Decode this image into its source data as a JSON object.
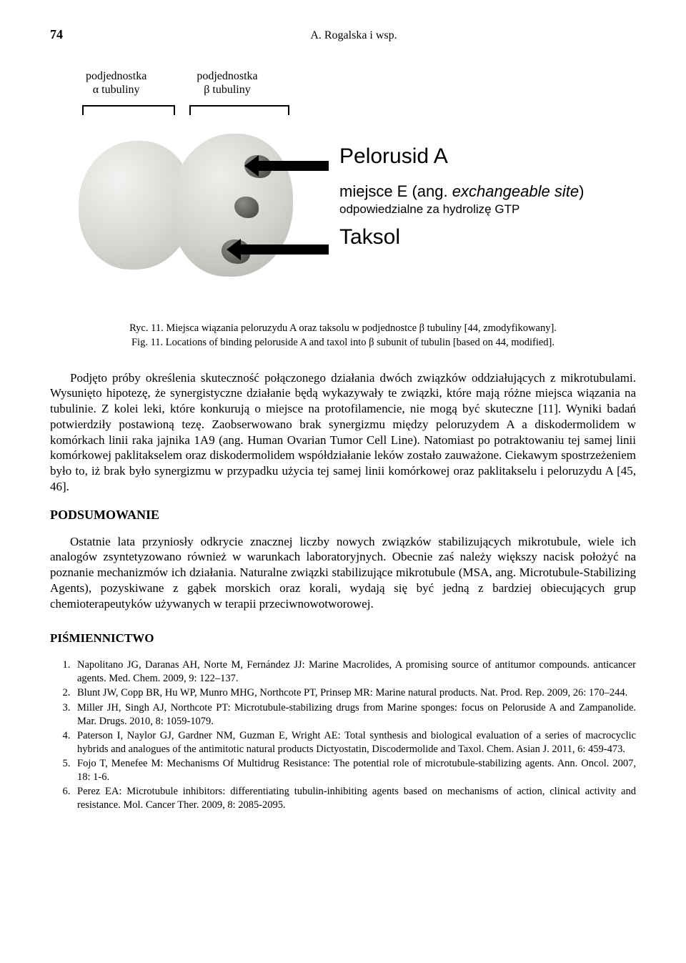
{
  "header": {
    "page_number": "74",
    "running_head": "A. Rogalska  i  wsp."
  },
  "figure": {
    "subunit_a_line1": "podjednostka",
    "subunit_a_line2": "α tubuliny",
    "subunit_b_line1": "podjednostka",
    "subunit_b_line2": "β tubuliny",
    "label_pelorusid": "Pelorusid A",
    "label_siteE_prefix": "miejsce E (ang. ",
    "label_siteE_italic": "exchangeable site",
    "label_siteE_suffix": ")",
    "label_siteE_line2": "odpowiedzialne za hydrolizę GTP",
    "label_taksol": "Taksol",
    "caption_line1": "Ryc. 11. Miejsca wiązania peloruzydu A oraz taksolu w podjednostce β tubuliny [44, zmodyfikowany].",
    "caption_line2": "Fig. 11. Locations of binding peloruside A and taxol into β subunit of tubulin [based on 44, modified]."
  },
  "paragraphs": {
    "p1": "Podjęto próby określenia skuteczność połączonego działania dwóch związków oddziałujących z mikrotubulami. Wysunięto hipotezę, że synergistyczne działanie będą wykazywały te związki, które mają różne miejsca wiązania na tubulinie. Z kolei leki, które konkurują o miejsce na protofilamencie, nie mogą być skuteczne [11]. Wyniki badań potwierdziły postawioną tezę. Zaobserwowano brak synergizmu między peloruzydem A a diskodermolidem w komórkach linii raka jajnika 1A9 (ang. Human Ovarian Tumor Cell Line). Natomiast po potraktowaniu tej samej linii komórkowej paklitakselem oraz diskodermolidem współdziałanie leków zostało zauważone. Ciekawym spostrzeżeniem było to, iż brak było synergizmu w przypadku użycia tej samej linii komórkowej oraz paklitakselu i peloruzydu A [45, 46].",
    "p2": "Ostatnie lata przyniosły odkrycie znacznej liczby nowych związków stabilizujących mikrotubule, wiele ich analogów zsyntetyzowano również w warunkach laboratoryjnych. Obecnie zaś należy większy nacisk położyć na poznanie mechanizmów ich działania. Naturalne związki stabilizujące mikrotubule (MSA, ang. Microtubule-Stabilizing Agents), pozyskiwane z gąbek morskich oraz korali, wydają się być jedną z bardziej obiecujących grup chemioterapeutyków używanych w terapii przeciwnowotworowej."
  },
  "headings": {
    "summary": "PODSUMOWANIE",
    "references": "PIŚMIENNICTWO"
  },
  "references": [
    "Napolitano JG, Daranas AH, Norte M, Fernández JJ: Marine Macrolides, A promising source of antitumor compounds. anticancer agents. Med. Chem. 2009, 9: 122–137.",
    "Blunt JW, Copp BR, Hu WP, Munro MHG, Northcote PT, Prinsep MR: Marine natural products. Nat. Prod. Rep. 2009, 26: 170–244.",
    "Miller JH, Singh AJ, Northcote PT: Microtubule-stabilizing drugs from Marine sponges: focus on Peloruside A and Zampanolide. Mar. Drugs. 2010, 8: 1059-1079.",
    "Paterson I, Naylor GJ, Gardner NM, Guzman E, Wright AE: Total synthesis and biological evaluation of a series of macrocyclic hybrids and analogues of the antimitotic natural products Dictyostatin, Discodermolide and Taxol. Chem. Asian J. 2011, 6: 459-473.",
    "Fojo T, Menefee M: Mechanisms Of Multidrug Resistance: The potential role of microtubule-stabilizing agents. Ann. Oncol. 2007, 18: 1-6.",
    "Perez EA: Microtubule inhibitors: differentiating tubulin-inhibiting agents based on mechanisms of action, clinical activity and resistance. Mol. Cancer Ther. 2009, 8: 2085-2095."
  ]
}
